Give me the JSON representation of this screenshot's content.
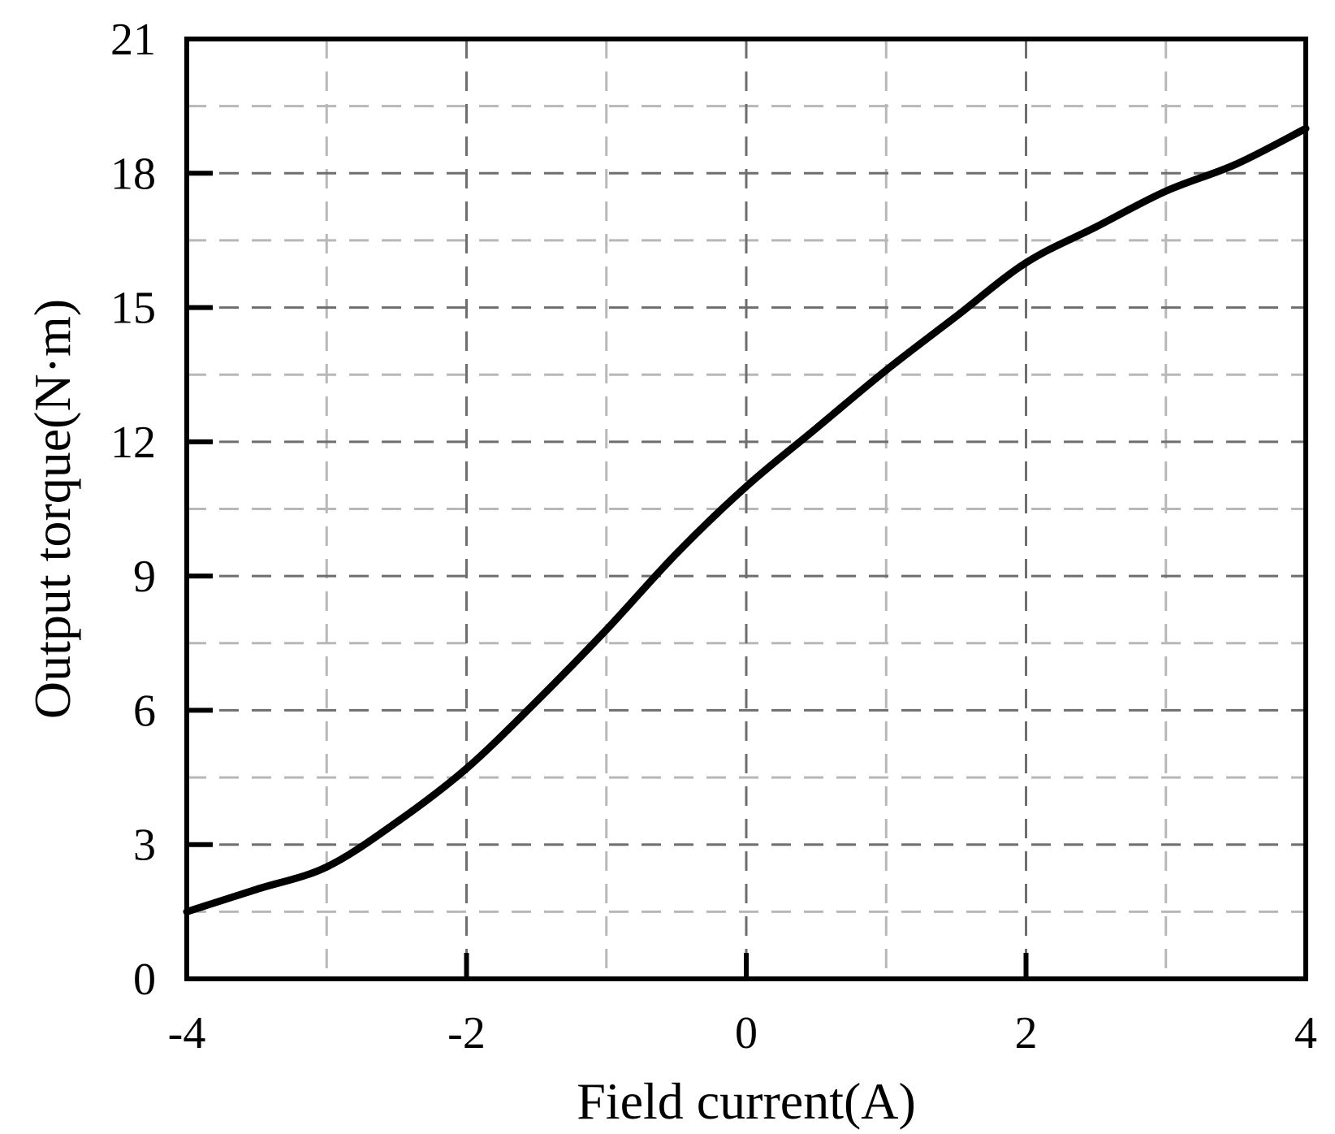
{
  "chart_data": {
    "type": "line",
    "title": "",
    "xlabel": "Field current(A)",
    "ylabel": "Output torque(N·m)",
    "xlim": [
      -4,
      4
    ],
    "ylim": [
      0,
      21
    ],
    "x_major_ticks": [
      -4,
      -2,
      0,
      2,
      4
    ],
    "x_minor_ticks": [
      -3,
      -1,
      1,
      3
    ],
    "y_major_ticks": [
      0,
      3,
      6,
      9,
      12,
      15,
      18,
      21
    ],
    "y_minor_ticks": [
      1.5,
      4.5,
      7.5,
      10.5,
      13.5,
      16.5,
      19.5
    ],
    "grid": true,
    "legend": "none",
    "series": [
      {
        "color": "#000000",
        "x": [
          -4.0,
          -3.5,
          -3.0,
          -2.5,
          -2.0,
          -1.5,
          -1.0,
          -0.5,
          0.0,
          0.5,
          1.0,
          1.5,
          2.0,
          2.5,
          3.0,
          3.5,
          4.0
        ],
        "y": [
          1.5,
          2.0,
          2.5,
          3.5,
          4.7,
          6.2,
          7.8,
          9.5,
          11.0,
          12.3,
          13.6,
          14.8,
          16.0,
          16.8,
          17.6,
          18.2,
          19.0
        ]
      }
    ]
  }
}
